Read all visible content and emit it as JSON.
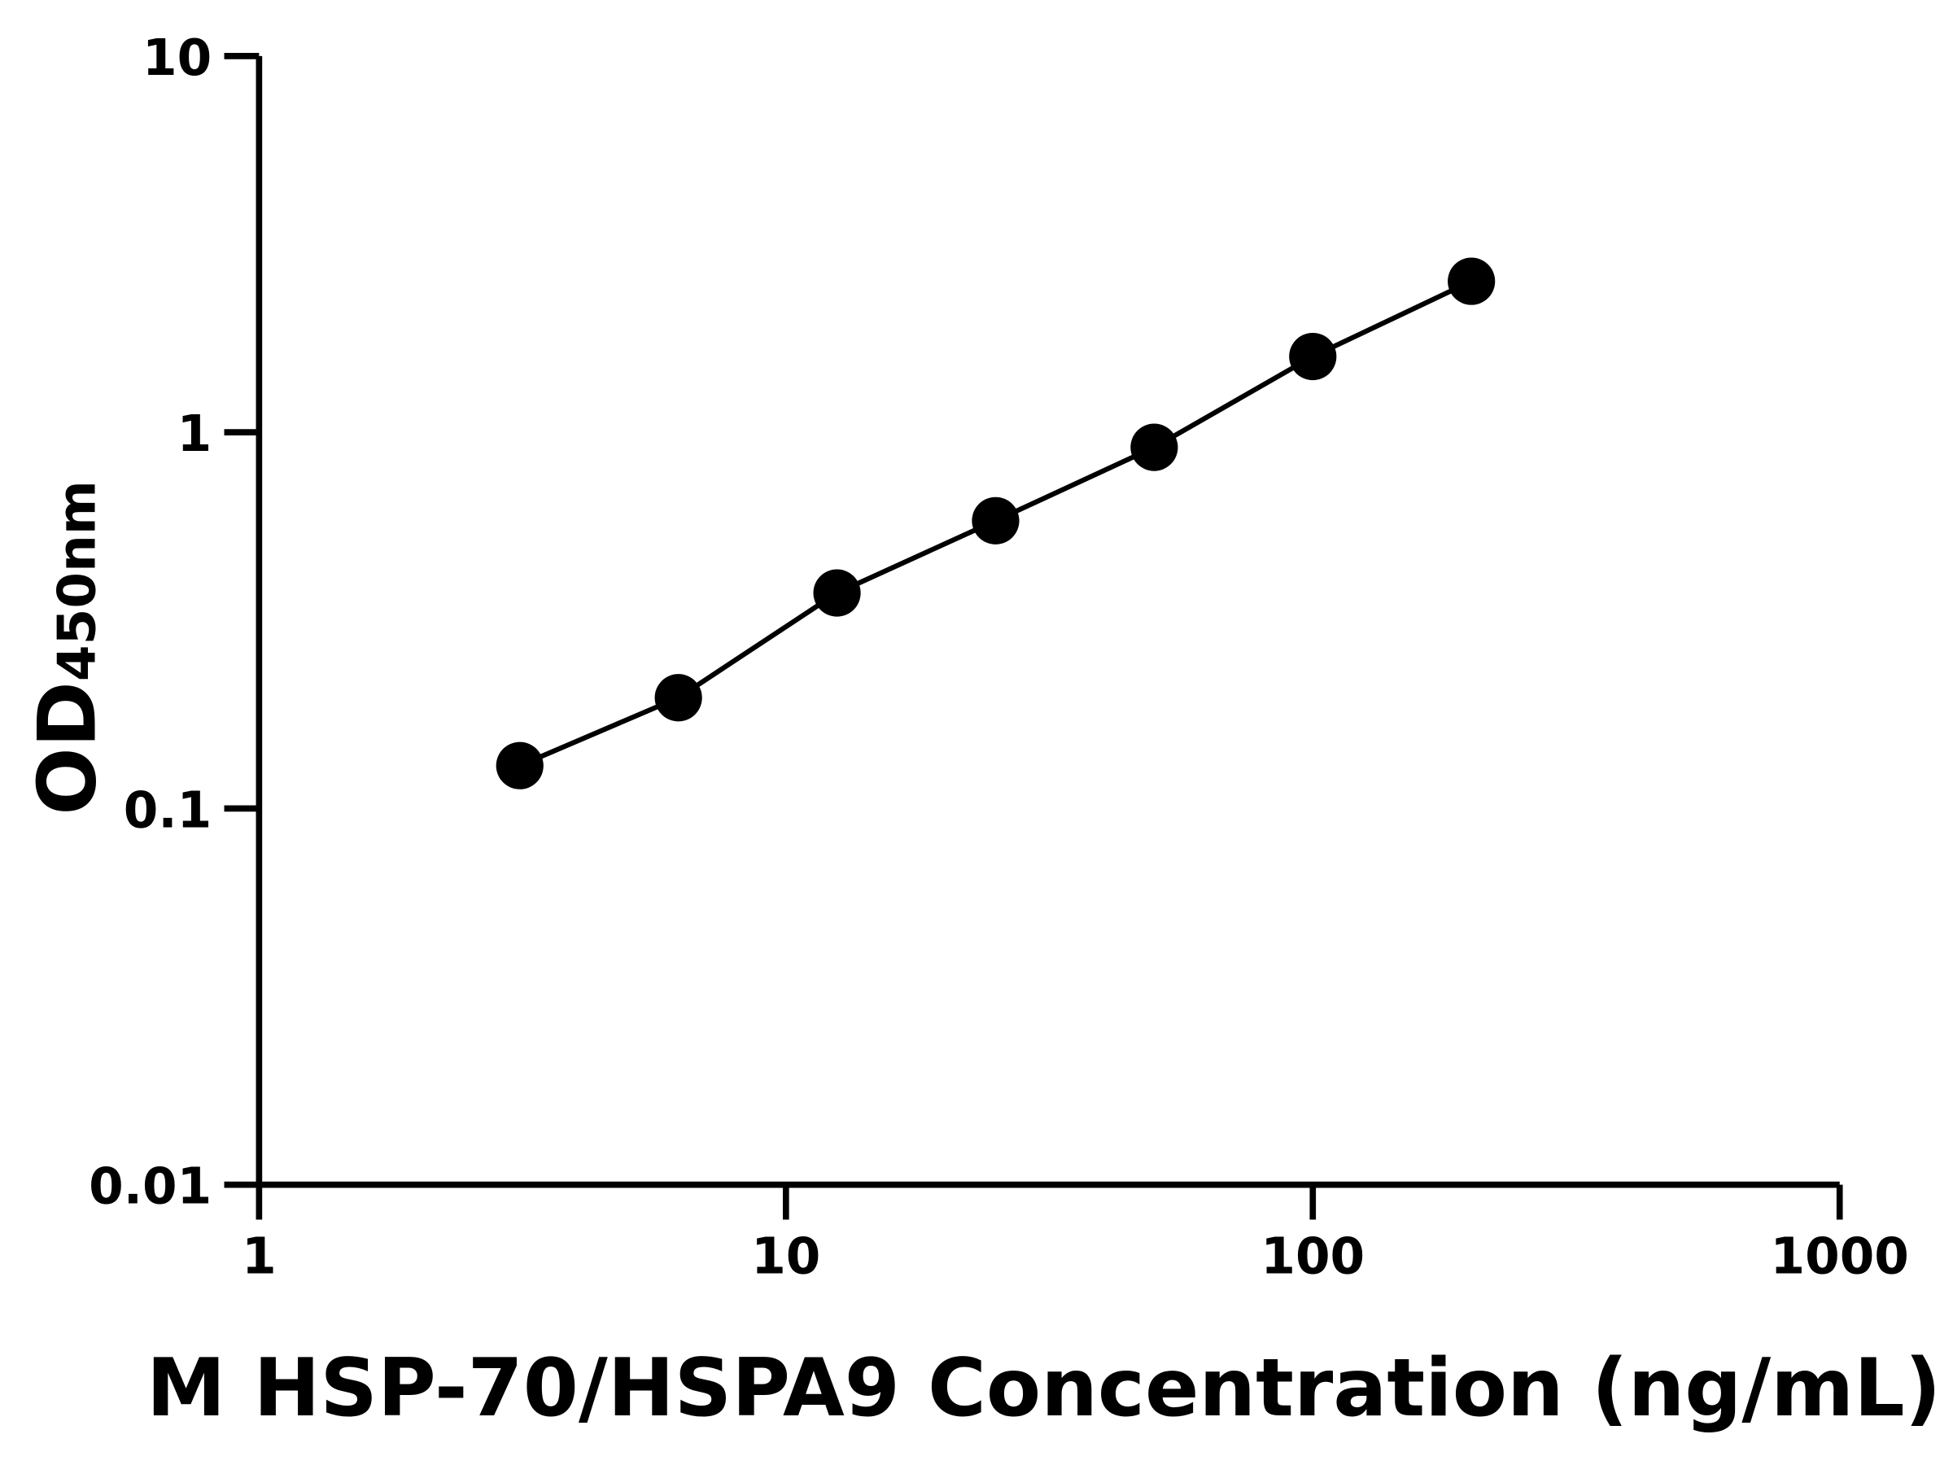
{
  "chart_data": {
    "type": "line",
    "title": "",
    "xlabel": "M HSP-70/HSPA9 Concentration (ng/mL)",
    "ylabel": "OD",
    "ylabel_sub": "450nm",
    "x_scale": "log",
    "y_scale": "log",
    "xlim": [
      1,
      1000
    ],
    "ylim": [
      0.01,
      10
    ],
    "x_ticks": [
      1,
      10,
      100,
      1000
    ],
    "x_tick_labels": [
      "1",
      "10",
      "100",
      "1000"
    ],
    "y_ticks": [
      0.01,
      0.1,
      1,
      10
    ],
    "y_tick_labels": [
      "0.01",
      "0.1",
      "1",
      "10"
    ],
    "grid": false,
    "legend": "none",
    "series": [
      {
        "x": [
          3.125,
          6.25,
          12.5,
          25,
          50,
          100,
          200
        ],
        "y": [
          0.13,
          0.197,
          0.374,
          0.582,
          0.912,
          1.59,
          2.52
        ],
        "color": "#000000",
        "marker": "filled-circle"
      }
    ]
  }
}
